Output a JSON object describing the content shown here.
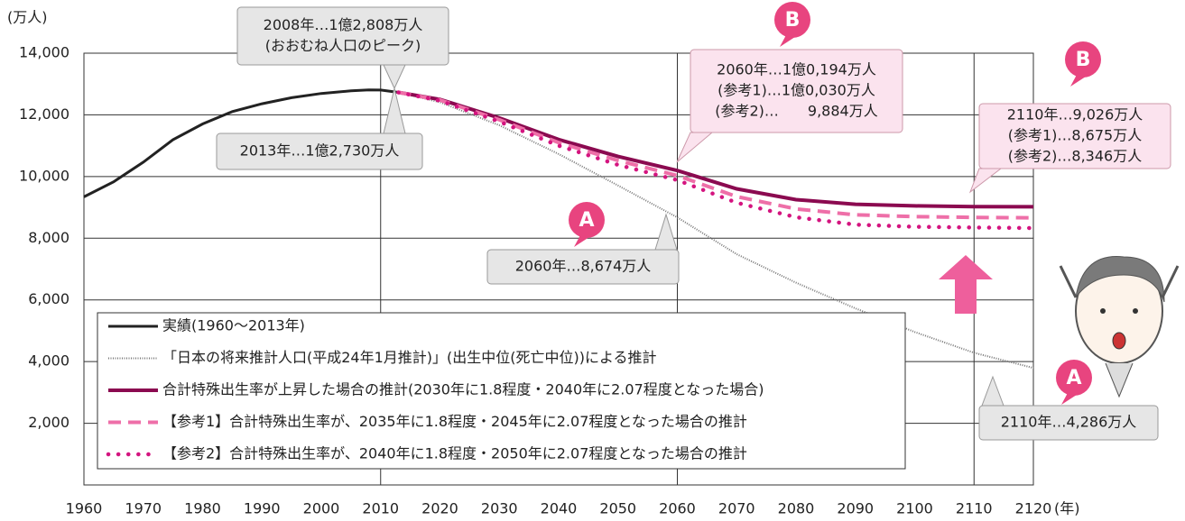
{
  "chart_data": {
    "type": "line",
    "y_unit": "(万人)",
    "x_unit": "(年)",
    "xlim": [
      1960,
      2120
    ],
    "xticks": [
      1960,
      1970,
      1980,
      1990,
      2000,
      2010,
      2020,
      2030,
      2040,
      2050,
      2060,
      2070,
      2080,
      2090,
      2100,
      2110,
      2120
    ],
    "x_gridlines": [
      2010,
      2060,
      2110
    ],
    "ylim": [
      0,
      14000
    ],
    "yticks": [
      {
        "value": 2000,
        "label": "2,000"
      },
      {
        "value": 4000,
        "label": "4,000"
      },
      {
        "value": 6000,
        "label": "6,000"
      },
      {
        "value": 8000,
        "label": "8,000"
      },
      {
        "value": 10000,
        "label": "10,000"
      },
      {
        "value": 12000,
        "label": "12,000"
      },
      {
        "value": 14000,
        "label": "14,000"
      }
    ],
    "grid": true,
    "series": [
      {
        "name": "実績(1960〜2013年)",
        "color": "#222222",
        "style": "solid",
        "x": [
          1960,
          1965,
          1970,
          1975,
          1980,
          1985,
          1990,
          1995,
          2000,
          2005,
          2008,
          2010,
          2013
        ],
        "values": [
          9342,
          9828,
          10467,
          11194,
          11706,
          12105,
          12361,
          12557,
          12693,
          12777,
          12808,
          12806,
          12730
        ]
      },
      {
        "name": "「日本の将来推計人口(平成24年1月推計)」(出生中位(死亡中位))による推計",
        "color": "#777777",
        "style": "dotted-thin",
        "x": [
          2013,
          2020,
          2030,
          2040,
          2050,
          2060,
          2070,
          2080,
          2090,
          2100,
          2110,
          2120
        ],
        "values": [
          12730,
          12410,
          11662,
          10728,
          9708,
          8674,
          7482,
          6559,
          5727,
          4959,
          4286,
          3795
        ]
      },
      {
        "name": "合計特殊出生率が上昇した場合の推計(2030年に1.8程度・2040年に2.07程度となった場合)",
        "color": "#8b0a50",
        "style": "solid-thick",
        "x": [
          2013,
          2020,
          2030,
          2040,
          2050,
          2060,
          2070,
          2080,
          2090,
          2100,
          2110,
          2120
        ],
        "values": [
          12730,
          12500,
          11900,
          11200,
          10650,
          10194,
          9600,
          9250,
          9100,
          9050,
          9026,
          9020
        ]
      },
      {
        "name": "【参考1】合計特殊出生率が、2035年に1.8程度・2045年に2.07程度となった場合の推計",
        "color": "#ee6fa8",
        "style": "dashed",
        "x": [
          2013,
          2020,
          2030,
          2040,
          2050,
          2060,
          2070,
          2080,
          2090,
          2100,
          2110,
          2120
        ],
        "values": [
          12730,
          12480,
          11840,
          11100,
          10520,
          10030,
          9350,
          8950,
          8760,
          8700,
          8675,
          8660
        ]
      },
      {
        "name": "【参考2】合計特殊出生率が、2040年に1.8程度・2050年に2.07程度となった場合の推計",
        "color": "#d4147f",
        "style": "dotted",
        "x": [
          2013,
          2020,
          2030,
          2040,
          2050,
          2060,
          2070,
          2080,
          2090,
          2100,
          2110,
          2120
        ],
        "values": [
          12730,
          12460,
          11780,
          11000,
          10380,
          9884,
          9150,
          8680,
          8440,
          8370,
          8346,
          8330
        ]
      }
    ],
    "annotations": [
      {
        "lines": [
          "2008年…1億2,808万人",
          "(おおむね人口のピーク)"
        ]
      },
      {
        "lines": [
          "2013年…1億2,730万人"
        ]
      },
      {
        "lines": [
          "2060年…1億0,194万人",
          "(参考1)…1億0,030万人",
          "(参考2)…　　9,884万人"
        ]
      },
      {
        "lines": [
          "2060年…8,674万人"
        ]
      },
      {
        "lines": [
          "2110年…9,026万人",
          "(参考1)…8,675万人",
          "(参考2)…8,346万人"
        ]
      },
      {
        "lines": [
          "2110年…4,286万人"
        ]
      }
    ],
    "badges": [
      "B",
      "A",
      "B",
      "A"
    ]
  }
}
